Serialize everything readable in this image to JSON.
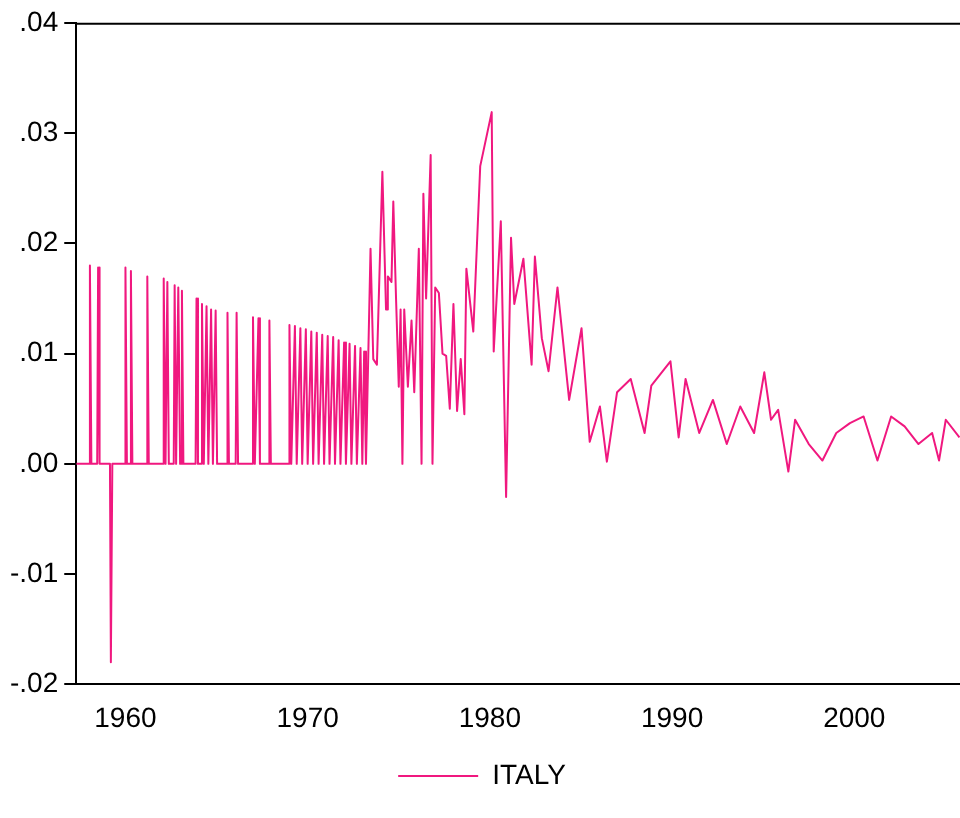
{
  "chart_data": {
    "type": "line",
    "legend": "bottom",
    "grid": false,
    "marker": "none",
    "line_style": "solid",
    "xlim": [
      1957.3,
      2005.8
    ],
    "xticks": [
      1960,
      1970,
      1980,
      1990,
      2000
    ],
    "ylim": [
      -0.02,
      0.04
    ],
    "yticks": [
      {
        "value": -0.02,
        "label": "-.02"
      },
      {
        "value": -0.01,
        "label": "-.01"
      },
      {
        "value": 0,
        "label": ".00"
      },
      {
        "value": 0.01,
        "label": ".01"
      },
      {
        "value": 0.02,
        "label": ".02"
      },
      {
        "value": 0.03,
        "label": ".03"
      },
      {
        "value": 0.04,
        "label": ".04"
      }
    ],
    "x": [
      1957.3,
      1958.0,
      1958.05,
      1958.13,
      1958.45,
      1958.5,
      1958.58,
      1959.15,
      1959.2,
      1959.28,
      1959.95,
      1960.0,
      1960.08,
      1960.25,
      1960.3,
      1960.38,
      1961.15,
      1961.2,
      1961.28,
      1962.05,
      1962.1,
      1962.2,
      1962.3,
      1962.38,
      1962.65,
      1962.7,
      1962.78,
      1962.9,
      1963.0,
      1963.1,
      1963.18,
      1963.85,
      1963.9,
      1963.98,
      1964.15,
      1964.2,
      1964.3,
      1964.45,
      1964.55,
      1964.7,
      1964.8,
      1964.95,
      1965.03,
      1965.55,
      1965.6,
      1965.68,
      1966.05,
      1966.1,
      1966.18,
      1966.95,
      1967.0,
      1967.1,
      1967.3,
      1967.38,
      1967.85,
      1967.9,
      1967.98,
      1968.95,
      1969.0,
      1969.1,
      1969.3,
      1969.4,
      1969.6,
      1969.7,
      1969.9,
      1970.0,
      1970.2,
      1970.3,
      1970.5,
      1970.6,
      1970.8,
      1970.9,
      1971.1,
      1971.2,
      1971.4,
      1971.5,
      1971.7,
      1971.8,
      1972.0,
      1972.1,
      1972.3,
      1972.4,
      1972.6,
      1972.7,
      1972.9,
      1973.0,
      1973.1,
      1973.2,
      1973.45,
      1973.6,
      1973.8,
      1974.1,
      1974.3,
      1974.4,
      1974.6,
      1974.7,
      1974.85,
      1975.0,
      1975.1,
      1975.2,
      1975.3,
      1975.5,
      1975.7,
      1975.85,
      1976.1,
      1976.25,
      1976.35,
      1976.5,
      1976.75,
      1976.85,
      1977.0,
      1977.2,
      1977.4,
      1977.6,
      1977.8,
      1978.0,
      1978.2,
      1978.4,
      1978.6,
      1978.71,
      1979.09,
      1979.47,
      1980.1,
      1980.21,
      1980.6,
      1980.89,
      1981.16,
      1981.34,
      1981.84,
      1982.29,
      1982.47,
      1982.85,
      1983.22,
      1983.71,
      1984.35,
      1985.03,
      1985.48,
      1986.04,
      1986.42,
      1986.98,
      1987.73,
      1988.49,
      1988.86,
      1989.91,
      1990.36,
      1990.74,
      1991.49,
      1992.24,
      1993.0,
      1993.74,
      1994.5,
      1995.06,
      1995.43,
      1995.82,
      1996.38,
      1996.75,
      1997.5,
      1998.25,
      1999.01,
      1999.76,
      2000.51,
      2001.27,
      2002.02,
      2002.76,
      2003.52,
      2004.27,
      2004.65,
      2005.02,
      2005.77
    ],
    "series": [
      {
        "name": "ITALY",
        "color": "#f0187f",
        "values": [
          0,
          0,
          0.018,
          0,
          0,
          0.0178,
          0,
          0,
          -0.018,
          0,
          0,
          0.0178,
          0,
          0,
          0.0175,
          0,
          0,
          0.017,
          0,
          0,
          0.0168,
          0,
          0.0165,
          0,
          0,
          0.0162,
          0,
          0.016,
          0,
          0.0157,
          0,
          0,
          0.015,
          0,
          0,
          0.0145,
          0,
          0.0143,
          0,
          0.014,
          0,
          0.0139,
          0,
          0,
          0.0137,
          0,
          0,
          0.0137,
          0,
          0,
          0.0133,
          0,
          0.0132,
          0,
          0,
          0.013,
          0,
          0,
          0.0126,
          0,
          0.0125,
          0,
          0.0123,
          0,
          0.0122,
          0,
          0.012,
          0,
          0.0119,
          0,
          0.0117,
          0,
          0.0116,
          0,
          0.0115,
          0,
          0.0112,
          0,
          0.011,
          0,
          0.0109,
          0,
          0.0107,
          0,
          0.0105,
          0,
          0.0102,
          0,
          0.0195,
          0.0095,
          0.009,
          0.0265,
          0.014,
          0.017,
          0.0165,
          0.0238,
          0.015,
          0.007,
          0.014,
          0,
          0.014,
          0.007,
          0.013,
          0.0065,
          0.0195,
          0,
          0.0245,
          0.015,
          0.028,
          0,
          0.016,
          0.0155,
          0.01,
          0.0098,
          0.005,
          0.0145,
          0.0048,
          0.0095,
          0.0045,
          0.0177,
          0.012,
          0.027,
          0.0319,
          0.0102,
          0.022,
          -0.003,
          0.0205,
          0.0145,
          0.0186,
          0.009,
          0.0188,
          0.0114,
          0.0084,
          0.016,
          0.0058,
          0.0123,
          0.002,
          0.0052,
          0.0002,
          0.0065,
          0.0077,
          0.0028,
          0.0071,
          0.0093,
          0.0024,
          0.0077,
          0.0028,
          0.0058,
          0.0018,
          0.0052,
          0.0028,
          0.0083,
          0.004,
          0.0049,
          -0.0007,
          0.004,
          0.0018,
          0.0003,
          0.0028,
          0.0037,
          0.0043,
          0.0003,
          0.0043,
          0.0034,
          0.0018,
          0.0028,
          0.0003,
          0.004,
          0.0024
        ]
      }
    ]
  }
}
